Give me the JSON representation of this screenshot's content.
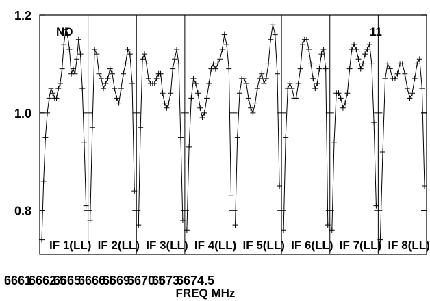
{
  "chart_data": {
    "type": "line",
    "xlabel": "FREQ MHz",
    "ylim": [
      0.71,
      1.2
    ],
    "yticks": [
      0.8,
      1.0,
      1.2
    ],
    "ytick_labels": [
      "0.8",
      "1.0",
      "1.2"
    ],
    "grid": false,
    "x_tick_labels": [
      "6661",
      "6662.5",
      "6665",
      "6666.5",
      "6669",
      "6670.5",
      "6673",
      "6674.5"
    ],
    "annotations": {
      "left": "ND",
      "right": "11"
    },
    "panels": [
      {
        "label": "IF 1(LL)",
        "values": [
          0.74,
          0.86,
          0.95,
          1.0,
          1.03,
          1.05,
          1.04,
          1.03,
          1.03,
          1.05,
          1.06,
          1.09,
          1.14,
          1.17,
          1.16,
          1.13,
          1.08,
          1.09,
          1.08,
          1.11,
          1.15,
          1.12,
          1.05,
          0.94,
          0.81
        ]
      },
      {
        "label": "IF 2(LL)",
        "values": [
          0.78,
          0.97,
          1.13,
          1.12,
          1.08,
          1.07,
          1.05,
          1.06,
          1.07,
          1.09,
          1.08,
          1.05,
          1.03,
          1.02,
          1.05,
          1.08,
          1.1,
          1.13,
          1.12,
          1.06,
          0.84
        ]
      },
      {
        "label": "IF 3(LL)",
        "values": [
          0.77,
          0.97,
          1.11,
          1.12,
          1.1,
          1.07,
          1.06,
          1.06,
          1.06,
          1.07,
          1.08,
          1.08,
          1.04,
          1.02,
          1.01,
          1.02,
          1.04,
          1.09,
          1.11,
          1.13,
          1.1,
          0.95,
          0.78
        ]
      },
      {
        "label": "IF 4(LL)",
        "values": [
          0.76,
          0.93,
          1.03,
          1.07,
          1.06,
          1.04,
          1.01,
          0.99,
          1.0,
          1.03,
          1.06,
          1.09,
          1.1,
          1.09,
          1.1,
          1.11,
          1.13,
          1.16,
          1.14,
          1.09,
          0.83
        ]
      },
      {
        "label": "IF 5(LL)",
        "values": [
          0.77,
          0.95,
          1.04,
          1.07,
          1.07,
          1.06,
          1.03,
          1.01,
          1.0,
          1.02,
          1.05,
          1.07,
          1.08,
          1.06,
          1.07,
          1.1,
          1.15,
          1.18,
          1.16,
          1.08,
          0.85
        ]
      },
      {
        "label": "IF 6(LL)",
        "values": [
          0.76,
          0.95,
          1.05,
          1.06,
          1.05,
          1.03,
          1.03,
          1.06,
          1.09,
          1.14,
          1.15,
          1.15,
          1.13,
          1.1,
          1.07,
          1.05,
          1.06,
          1.09,
          1.12,
          1.13,
          1.09,
          0.77
        ]
      },
      {
        "label": "IF 7(LL)",
        "values": [
          0.76,
          0.94,
          1.04,
          1.04,
          1.03,
          1.01,
          1.02,
          1.04,
          1.09,
          1.13,
          1.14,
          1.13,
          1.11,
          1.09,
          1.1,
          1.12,
          1.13,
          1.14,
          1.1,
          0.98,
          0.81
        ]
      },
      {
        "label": "IF 8(LL)",
        "values": [
          0.74,
          0.92,
          1.07,
          1.1,
          1.09,
          1.07,
          1.07,
          1.08,
          1.1,
          1.1,
          1.08,
          1.05,
          1.03,
          1.04,
          1.07,
          1.1,
          1.11,
          1.05,
          0.85
        ]
      }
    ]
  }
}
